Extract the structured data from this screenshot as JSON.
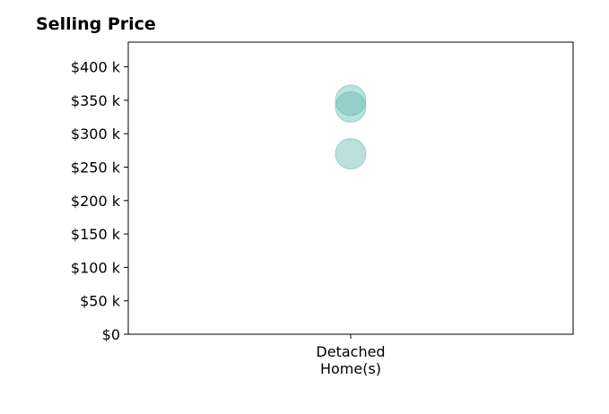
{
  "chart_data": {
    "type": "scatter",
    "title": "Selling Price",
    "categories": [
      "Detached\nHome(s)"
    ],
    "y_tick_labels": [
      "$0",
      "$50 k",
      "$100 k",
      "$150 k",
      "$200 k",
      "$250 k",
      "$300 k",
      "$350 k",
      "$400 k"
    ],
    "y_ticks": [
      0,
      50000,
      100000,
      150000,
      200000,
      250000,
      300000,
      350000,
      400000
    ],
    "ylim": [
      0,
      437000
    ],
    "grid": false,
    "marker_color": "#5fb8ad",
    "points": [
      {
        "category": "Detached\nHome(s)",
        "y": 270000
      },
      {
        "category": "Detached\nHome(s)",
        "y": 340000
      },
      {
        "category": "Detached\nHome(s)",
        "y": 350000
      }
    ]
  }
}
